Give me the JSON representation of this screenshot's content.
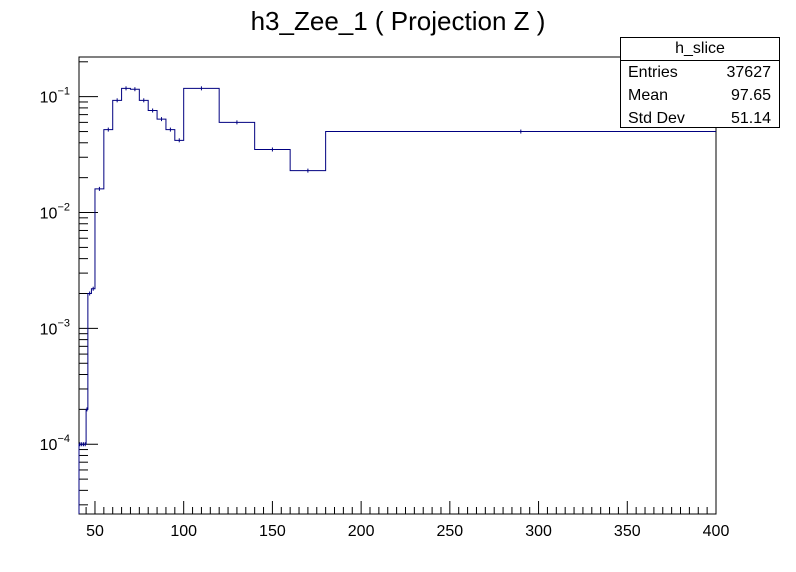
{
  "chart_data": {
    "type": "histogram",
    "title": "h3_Zee_1 ( Projection Z )",
    "xlim": [
      41,
      400
    ],
    "ylim": [
      2.5e-05,
      0.22
    ],
    "yscale": "log",
    "color": "#000080",
    "x_ticks": [
      50,
      100,
      150,
      200,
      250,
      300,
      350,
      400
    ],
    "y_ticks": [
      {
        "value": 0.0001,
        "base": "10",
        "exp": "−4"
      },
      {
        "value": 0.001,
        "base": "10",
        "exp": "−3"
      },
      {
        "value": 0.01,
        "base": "10",
        "exp": "−2"
      },
      {
        "value": 0.1,
        "base": "10",
        "exp": "−1"
      }
    ],
    "edges": [
      41,
      42,
      43,
      44,
      45,
      46,
      48,
      50,
      55,
      60,
      65,
      70,
      75,
      80,
      85,
      90,
      95,
      100,
      120,
      140,
      160,
      180,
      400
    ],
    "values": [
      0.0001,
      0.0001,
      0.0001,
      0.0001,
      0.0002,
      0.002,
      0.0022,
      0.016,
      0.052,
      0.093,
      0.118,
      0.116,
      0.093,
      0.076,
      0.064,
      0.052,
      0.042,
      0.118,
      0.06,
      0.035,
      0.023,
      0.05
    ],
    "stats": {
      "name": "h_slice",
      "rows": [
        {
          "label": "Entries",
          "value": "37627"
        },
        {
          "label": "Mean",
          "value": "97.65"
        },
        {
          "label": "Std Dev",
          "value": "51.14"
        }
      ]
    }
  }
}
